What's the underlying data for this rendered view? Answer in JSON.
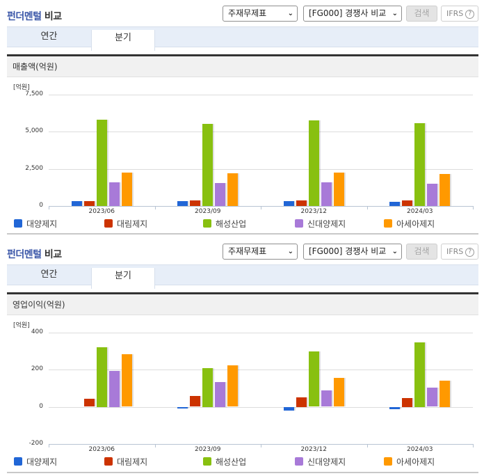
{
  "panels": [
    {
      "header": {
        "title_blue": "펀더멘털",
        "title_dark": "비교",
        "statement_select": "주재무제표",
        "compare_select": "[FG000] 경쟁사 비교",
        "search_button": "검색",
        "ifrs_button": "IFRS",
        "help_icon": "?"
      },
      "tabs": [
        {
          "label": "연간",
          "active": false
        },
        {
          "label": "분기",
          "active": true
        }
      ],
      "metric_title": "매출액(억원)"
    },
    {
      "header": {
        "title_blue": "펀더멘털",
        "title_dark": "비교",
        "statement_select": "주재무제표",
        "compare_select": "[FG000] 경쟁사 비교",
        "search_button": "검색",
        "ifrs_button": "IFRS",
        "help_icon": "?"
      },
      "tabs": [
        {
          "label": "연간",
          "active": false
        },
        {
          "label": "분기",
          "active": true
        }
      ],
      "metric_title": "영업이익(억원)"
    }
  ],
  "colors": {
    "대양제지": "#2166d6",
    "대림제지": "#cc3300",
    "해성산업": "#88c010",
    "신대양제지": "#a87ad8",
    "아세아제지": "#ff9900"
  },
  "chart_data": [
    {
      "type": "bar",
      "title": "매출액(억원)",
      "xlabel": "",
      "ylabel": "[억원]",
      "ylim": [
        0,
        7500
      ],
      "yticks": [
        0,
        2500,
        5000,
        7500
      ],
      "ytick_labels": [
        "0",
        "2,500",
        "5,000",
        "7,500"
      ],
      "grid": true,
      "legend_position": "bottom",
      "categories": [
        "2023/06",
        "2023/09",
        "2023/12",
        "2024/03"
      ],
      "series": [
        {
          "name": "대양제지",
          "values": [
            330,
            330,
            330,
            290
          ]
        },
        {
          "name": "대림제지",
          "values": [
            330,
            390,
            370,
            370
          ]
        },
        {
          "name": "해성산업",
          "values": [
            5810,
            5530,
            5760,
            5580
          ]
        },
        {
          "name": "신대양제지",
          "values": [
            1600,
            1550,
            1600,
            1500
          ]
        },
        {
          "name": "아세아제지",
          "values": [
            2250,
            2200,
            2250,
            2160
          ]
        }
      ]
    },
    {
      "type": "bar",
      "title": "영업이익(억원)",
      "xlabel": "",
      "ylabel": "[억원]",
      "ylim": [
        -200,
        400
      ],
      "yticks": [
        -200,
        0,
        200,
        400
      ],
      "ytick_labels": [
        "-200",
        "0",
        "200",
        "400"
      ],
      "grid": true,
      "legend_position": "bottom",
      "categories": [
        "2023/06",
        "2023/09",
        "2023/12",
        "2024/03"
      ],
      "series": [
        {
          "name": "대양제지",
          "values": [
            0,
            -8,
            -18,
            -12
          ]
        },
        {
          "name": "대림제지",
          "values": [
            42,
            58,
            52,
            48
          ]
        },
        {
          "name": "해성산업",
          "values": [
            322,
            210,
            298,
            348
          ]
        },
        {
          "name": "신대양제지",
          "values": [
            195,
            135,
            88,
            103
          ]
        },
        {
          "name": "아세아제지",
          "values": [
            282,
            222,
            155,
            143
          ]
        }
      ]
    }
  ]
}
